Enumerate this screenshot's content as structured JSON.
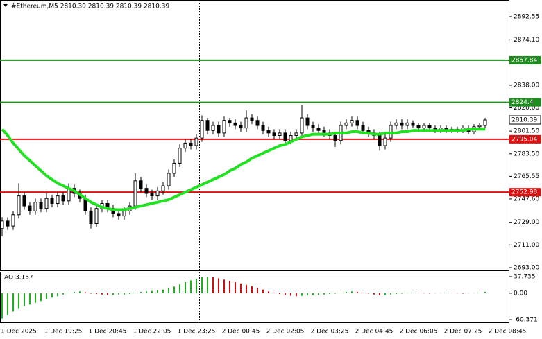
{
  "chart_data": [
    {
      "type": "candlestick",
      "title": "#Ethereum,M5  2810.39 2810.39 2810.39 2810.39",
      "categories": [
        null,
        null,
        null,
        "1 Dec 2025",
        null,
        null,
        null,
        null,
        null,
        null,
        null,
        "1 Dec 19:25",
        null,
        null,
        null,
        null,
        null,
        null,
        null,
        "1 Dec 20:45",
        null,
        null,
        null,
        null,
        null,
        null,
        null,
        "1 Dec 22:05",
        null,
        null,
        null,
        null,
        null,
        null,
        null,
        "1 Dec 23:25",
        null,
        null,
        null,
        null,
        null,
        null,
        null,
        "2 Dec 00:45",
        null,
        null,
        null,
        null,
        null,
        null,
        null,
        "2 Dec 02:05",
        null,
        null,
        null,
        null,
        null,
        null,
        null,
        "2 Dec 03:25",
        null,
        null,
        null,
        null,
        null,
        null,
        null,
        "2 Dec 04:45",
        null,
        null,
        null,
        null,
        null,
        null,
        null,
        "2 Dec 06:05",
        null,
        null,
        null,
        null,
        null,
        null,
        null,
        "2 Dec 07:25",
        null,
        null,
        null,
        null,
        null,
        null,
        null,
        "2 Dec 08:45"
      ],
      "open": [
        2724,
        2730,
        2726,
        2735,
        2750,
        2742,
        2738,
        2745,
        2740,
        2748,
        2744,
        2750,
        2746,
        2756,
        2752,
        2748,
        2738,
        2728,
        2740,
        2744,
        2740,
        2736,
        2734,
        2738,
        2742,
        2762,
        2756,
        2752,
        2750,
        2754,
        2758,
        2768,
        2776,
        2788,
        2792,
        2790,
        2796,
        2810,
        2802,
        2806,
        2800,
        2810,
        2808,
        2806,
        2804,
        2812,
        2810,
        2806,
        2802,
        2800,
        2798,
        2800,
        2794,
        2798,
        2800,
        2812,
        2806,
        2804,
        2802,
        2800,
        2798,
        2794,
        2806,
        2808,
        2810,
        2806,
        2802,
        2800,
        2798,
        2790,
        2796,
        2806,
        2808,
        2806,
        2808,
        2806,
        2804,
        2806,
        2804,
        2802,
        2804,
        2802,
        2803,
        2802,
        2804,
        2801,
        2805,
        2806,
        null,
        null,
        null,
        null
      ],
      "high": [
        2733,
        2733,
        2738,
        2760,
        2753,
        2745,
        2748,
        2748,
        2752,
        2751,
        2753,
        2753,
        2760,
        2759,
        2755,
        2751,
        2741,
        2743,
        2747,
        2747,
        2743,
        2739,
        2741,
        2745,
        2768,
        2765,
        2759,
        2755,
        2757,
        2761,
        2771,
        2779,
        2791,
        2795,
        2795,
        2799,
        2814,
        2812,
        2809,
        2809,
        2813,
        2812,
        2811,
        2809,
        2818,
        2815,
        2813,
        2809,
        2805,
        2803,
        2803,
        2803,
        2801,
        2803,
        2822,
        2815,
        2809,
        2807,
        2805,
        2803,
        2801,
        2809,
        2811,
        2813,
        2813,
        2809,
        2805,
        2803,
        2801,
        2799,
        2809,
        2811,
        2811,
        2811,
        2810,
        2808,
        2808,
        2808,
        2806,
        2806,
        2806,
        2805,
        2805,
        2806,
        2806,
        2807,
        2808,
        2812,
        null,
        null,
        null,
        null
      ],
      "low": [
        2718,
        2723,
        2723,
        2732,
        2739,
        2735,
        2735,
        2737,
        2737,
        2741,
        2741,
        2743,
        2743,
        2749,
        2745,
        2735,
        2724,
        2725,
        2737,
        2737,
        2733,
        2731,
        2731,
        2735,
        2739,
        2753,
        2749,
        2747,
        2747,
        2751,
        2755,
        2765,
        2773,
        2785,
        2787,
        2787,
        2793,
        2799,
        2799,
        2797,
        2797,
        2805,
        2803,
        2801,
        2801,
        2807,
        2803,
        2799,
        2797,
        2795,
        2795,
        2791,
        2791,
        2795,
        2797,
        2803,
        2801,
        2799,
        2797,
        2795,
        2789,
        2791,
        2803,
        2805,
        2803,
        2799,
        2797,
        2795,
        2786,
        2787,
        2793,
        2803,
        2803,
        2803,
        2804,
        2802,
        2802,
        2802,
        2800,
        2800,
        2800,
        2800,
        2800,
        2800,
        2799,
        2799,
        2803,
        2804,
        null,
        null,
        null,
        null
      ],
      "close": [
        2730,
        2726,
        2735,
        2750,
        2742,
        2738,
        2745,
        2740,
        2748,
        2744,
        2750,
        2746,
        2756,
        2752,
        2748,
        2738,
        2728,
        2740,
        2744,
        2740,
        2736,
        2734,
        2738,
        2742,
        2762,
        2756,
        2752,
        2750,
        2754,
        2758,
        2768,
        2776,
        2788,
        2792,
        2790,
        2796,
        2810,
        2802,
        2806,
        2800,
        2810,
        2808,
        2806,
        2804,
        2812,
        2810,
        2806,
        2802,
        2800,
        2798,
        2800,
        2794,
        2798,
        2800,
        2812,
        2806,
        2804,
        2802,
        2800,
        2798,
        2794,
        2806,
        2808,
        2810,
        2806,
        2802,
        2800,
        2798,
        2790,
        2796,
        2806,
        2808,
        2806,
        2808,
        2806,
        2804,
        2806,
        2804,
        2802,
        2804,
        2802,
        2803,
        2802,
        2804,
        2801,
        2805,
        2806,
        2810.39,
        null,
        null,
        null,
        null
      ],
      "series": [
        {
          "color": "#22e022",
          "values": [
            2803,
            2798,
            2792,
            2787,
            2782,
            2778,
            2774,
            2770,
            2766,
            2763,
            2760,
            2758,
            2756,
            2754,
            2751,
            2748,
            2745,
            2743,
            2741,
            2740,
            2739,
            2739,
            2739,
            2740,
            2741,
            2742,
            2743,
            2744,
            2745,
            2746,
            2747,
            2749,
            2751,
            2753,
            2755,
            2757,
            2759,
            2761,
            2763,
            2765,
            2767,
            2770,
            2772,
            2775,
            2777,
            2780,
            2782,
            2784,
            2786,
            2788,
            2790,
            2791,
            2793,
            2795,
            2797,
            2798,
            2799,
            2799,
            2799,
            2799,
            2800,
            2800,
            2800,
            2801,
            2801,
            2800,
            2800,
            2799,
            2799,
            2800,
            2800,
            2800,
            2801,
            2801,
            2802,
            2802,
            2802,
            2802,
            2802,
            2802,
            2802,
            2802,
            2802,
            2802,
            2803,
            2803,
            2803,
            2803,
            null,
            null,
            null,
            null
          ]
        }
      ],
      "levels": [
        {
          "value": 2857.84,
          "color": "#1e8c1e"
        },
        {
          "value": 2824.4,
          "color": "#1e8c1e"
        },
        {
          "value": 2795.04,
          "color": "#e01010"
        },
        {
          "value": 2752.98,
          "color": "#e01010"
        }
      ],
      "ylim": [
        2690.8,
        2905.2
      ],
      "yticks": [
        2892.55,
        {
          "value": 2874.1,
          "label": "2874.10"
        },
        {
          "value": 2838,
          "label": "2838.00"
        },
        {
          "value": 2820,
          "label": "2820.00"
        },
        {
          "value": 2801.5,
          "label": "2801.50"
        },
        {
          "value": 2783.5,
          "label": "2783.50"
        },
        2765.55,
        {
          "value": 2747.6,
          "label": "2747.60"
        },
        {
          "value": 2729,
          "label": "2729.00"
        },
        {
          "value": 2711,
          "label": "2711.00"
        },
        {
          "value": 2693,
          "label": "2693.00"
        }
      ]
    },
    {
      "type": "bar",
      "title": "AO 3.157",
      "values": [
        -58,
        -50,
        -42,
        -36,
        -30,
        -26,
        -22,
        -18,
        -14,
        -10,
        -7,
        -3,
        1,
        3,
        4,
        2,
        -1,
        -2,
        -3,
        -4,
        -4,
        -3,
        -3,
        -2,
        1,
        3,
        4,
        5,
        6,
        8,
        11,
        15,
        20,
        25,
        29,
        33,
        36,
        37,
        36,
        34,
        31,
        28,
        25,
        22,
        19,
        16,
        12,
        8,
        4,
        1,
        -2,
        -4,
        -6,
        -7,
        -6,
        -5,
        -5,
        -4,
        -3,
        -2,
        -1,
        1,
        3,
        4,
        3,
        1,
        -1,
        -3,
        -5,
        -4,
        -3,
        -2,
        -1,
        0.5,
        1,
        0.5,
        -0.5,
        -1,
        -0.5,
        0.5,
        1,
        0.5,
        -0.5,
        -1,
        -0.5,
        0.5,
        1,
        3.157,
        null,
        null,
        null,
        null
      ],
      "colors": {
        "up": "#20b020",
        "down": "#d01010"
      },
      "ylim": [
        -66.6,
        47.1
      ],
      "yticks": [
        37.735,
        {
          "value": 0,
          "label": "0.00"
        },
        -60.371
      ]
    }
  ]
}
